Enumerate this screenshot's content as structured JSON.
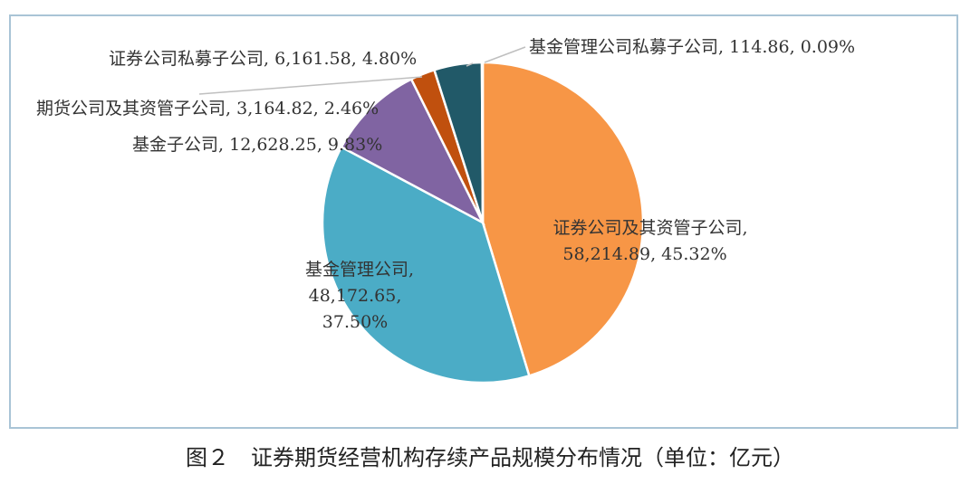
{
  "caption": "图２　证券期货经营机构存续产品规模分布情况（单位：亿元）",
  "chart_data": {
    "type": "pie",
    "slices": [
      {
        "label": "证券公司及其资管子公司",
        "value": "58,214.89",
        "percent": "45.32%",
        "pct": 45.32,
        "color": "#f79646"
      },
      {
        "label": "基金管理公司",
        "value": "48,172.65",
        "percent": "37.50%",
        "pct": 37.5,
        "color": "#4bacc6"
      },
      {
        "label": "基金子公司",
        "value": "12,628.25",
        "percent": "9.83%",
        "pct": 9.83,
        "color": "#8064a2"
      },
      {
        "label": "期货公司及其资管子公司",
        "value": "3,164.82",
        "percent": "2.46%",
        "pct": 2.46,
        "color": "#c0500e"
      },
      {
        "label": "证券公司私募子公司",
        "value": "6,161.58",
        "percent": "4.80%",
        "pct": 4.8,
        "color": "#215968"
      },
      {
        "label": "基金管理公司私募子公司",
        "value": "114.86",
        "percent": "0.09%",
        "pct": 0.09,
        "color": "#8eb4e3"
      }
    ]
  }
}
